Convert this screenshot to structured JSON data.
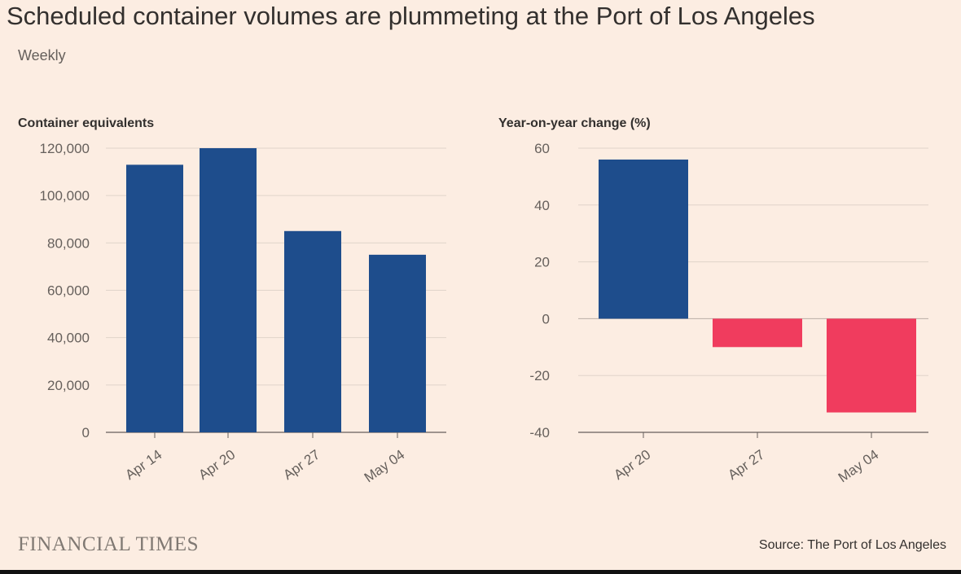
{
  "header": {
    "title": "Scheduled container volumes are plummeting at the Port of Los Angeles",
    "subtitle": "Weekly"
  },
  "footer": {
    "brand": "FINANCIAL TIMES",
    "source": "Source: The Port of Los Angeles"
  },
  "colors": {
    "background": "#fcede2",
    "positive": "#1e4d8c",
    "negative": "#f03c5e",
    "grid": "#e0d4ca"
  },
  "chart_data": [
    {
      "type": "bar",
      "title": "Container equivalents",
      "categories": [
        "Apr 14",
        "Apr 20",
        "Apr 27",
        "May 04"
      ],
      "values": [
        113000,
        120000,
        85000,
        75000
      ],
      "ylim": [
        0,
        120000
      ],
      "yticks": [
        0,
        20000,
        40000,
        60000,
        80000,
        100000,
        120000
      ],
      "ytick_labels": [
        "0",
        "20,000",
        "40,000",
        "60,000",
        "80,000",
        "100,000",
        "120,000"
      ],
      "grid": true
    },
    {
      "type": "bar",
      "title": "Year-on-year change (%)",
      "categories": [
        "Apr 20",
        "Apr 27",
        "May 04"
      ],
      "values": [
        56,
        -10,
        -33
      ],
      "ylim": [
        -40,
        60
      ],
      "yticks": [
        -40,
        -20,
        0,
        20,
        40,
        60
      ],
      "ytick_labels": [
        "-40",
        "-20",
        "0",
        "20",
        "40",
        "60"
      ],
      "grid": true
    }
  ]
}
